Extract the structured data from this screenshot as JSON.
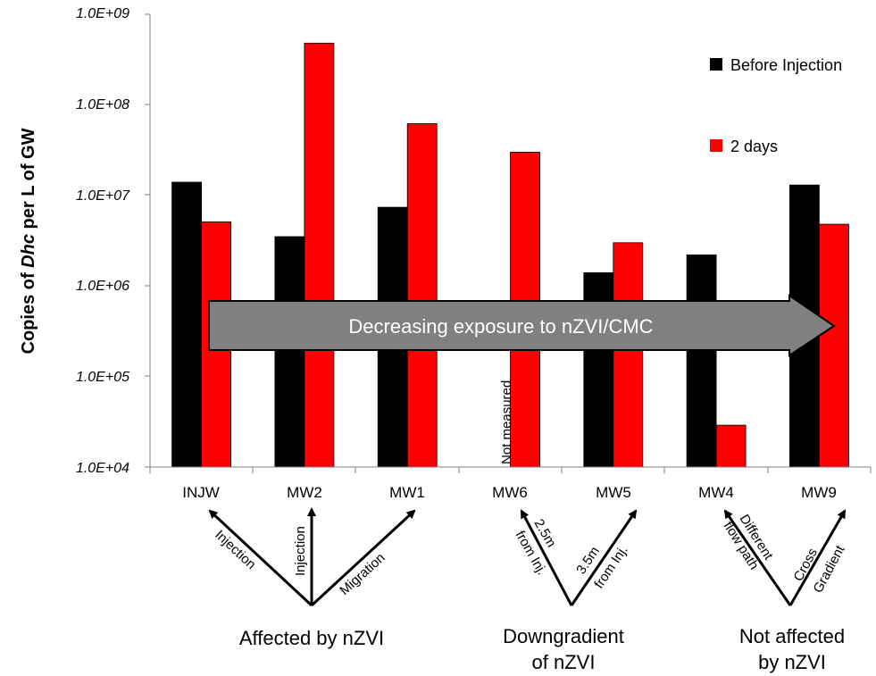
{
  "chart_data": {
    "type": "bar",
    "scale": "log",
    "categories": [
      "INJW",
      "MW2",
      "MW1",
      "MW6",
      "MW5",
      "MW4",
      "MW9"
    ],
    "series": [
      {
        "name": "Before Injection",
        "color": "#000000",
        "values": [
          14000000,
          3500000,
          7400000,
          null,
          1400000,
          2200000,
          13000000
        ]
      },
      {
        "name": "2 days",
        "color": "#ff0000",
        "values": [
          5100000,
          480000000,
          62000000,
          30000000,
          3000000,
          29000,
          4800000
        ]
      }
    ],
    "ylim": [
      10000,
      1000000000
    ],
    "yticks": [
      "1.0E+04",
      "1.0E+05",
      "1.0E+06",
      "1.0E+07",
      "1.0E+08",
      "1.0E+09"
    ],
    "ylabel_parts": [
      "Copies of ",
      "Dhc",
      " per L of GW"
    ],
    "legend_position": "top-right",
    "grid": false,
    "overlay_arrow_text": "Decreasing exposure to nZVI/CMC",
    "overlay_arrow_color": "#808080",
    "not_measured_label": "Not measured",
    "pointer_labels": [
      "Injection",
      "Injection",
      "Migration",
      "2.5m",
      "from Inj.",
      "3.5m",
      "from Inj.",
      "Different",
      "flow path",
      "Cross",
      "Gradient"
    ],
    "groups": [
      {
        "lines": [
          "Affected by nZVI"
        ]
      },
      {
        "lines": [
          "Downgradient",
          "of nZVI"
        ]
      },
      {
        "lines": [
          "Not affected",
          "by nZVI"
        ]
      }
    ]
  }
}
